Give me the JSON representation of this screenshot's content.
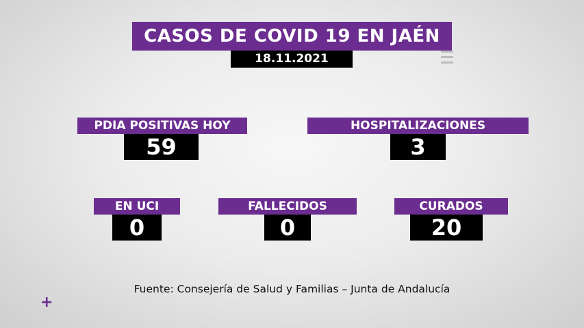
{
  "title": "CASOS DE COVID 19 EN JAÉN",
  "date": "18.11.2021",
  "stats": {
    "pdia": {
      "label": "PDIA POSITIVAS HOY",
      "value": "59"
    },
    "hospitalizaciones": {
      "label": "HOSPITALIZACIONES",
      "value": "3"
    },
    "uci": {
      "label": "EN UCI",
      "value": "0"
    },
    "fallecidos": {
      "label": "FALLECIDOS",
      "value": "0"
    },
    "curados": {
      "label": "CURADOS",
      "value": "20"
    }
  },
  "source": "Fuente: Consejería de Salud y Familias – Junta de Andalucía",
  "colors": {
    "accent": "#6b2d8f",
    "value_bg": "#000000"
  },
  "icons": {
    "corner": "plus-icon"
  }
}
